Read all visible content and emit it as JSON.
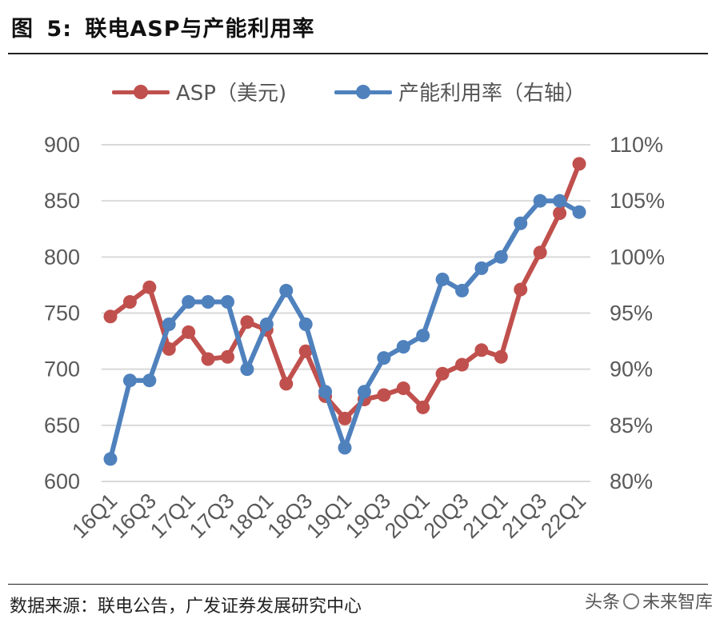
{
  "figure": {
    "prefix": "图",
    "number": "5:",
    "title": "联电ASP与产能利用率"
  },
  "source_note": "数据来源：联电公告，广发证券发展研究中心",
  "watermark": {
    "left": "头条",
    "right": "未来智库"
  },
  "colors": {
    "asp": "#C0504D",
    "utilization": "#4F81BD",
    "grid": "#D9D9D9",
    "axis_text": "#595959"
  },
  "chart_data": {
    "type": "line",
    "title": "联电ASP与产能利用率",
    "categories": [
      "16Q1",
      "16Q2",
      "16Q3",
      "16Q4",
      "17Q1",
      "17Q2",
      "17Q3",
      "17Q4",
      "18Q1",
      "18Q2",
      "18Q3",
      "18Q4",
      "19Q1",
      "19Q2",
      "19Q3",
      "19Q4",
      "20Q1",
      "20Q2",
      "20Q3",
      "20Q4",
      "21Q1",
      "21Q2",
      "21Q3",
      "21Q4",
      "22Q1"
    ],
    "tick_labels_shown": [
      "16Q1",
      "16Q3",
      "17Q1",
      "17Q3",
      "18Q1",
      "18Q3",
      "19Q1",
      "19Q3",
      "20Q1",
      "20Q3",
      "21Q1",
      "21Q3",
      "22Q1"
    ],
    "y_left": {
      "min": 600,
      "max": 900,
      "step": 50,
      "ticks": [
        "600",
        "650",
        "700",
        "750",
        "800",
        "850",
        "900"
      ]
    },
    "y_right": {
      "min": 80,
      "max": 110,
      "step": 5,
      "ticks": [
        "80%",
        "85%",
        "90%",
        "95%",
        "100%",
        "105%",
        "110%"
      ]
    },
    "grid": true,
    "legend_position": "top",
    "series": [
      {
        "name": "ASP（美元)",
        "axis": "left",
        "values": [
          747,
          760,
          773,
          718,
          733,
          709,
          711,
          742,
          735,
          687,
          716,
          676,
          656,
          673,
          677,
          683,
          666,
          696,
          704,
          717,
          711,
          771,
          804,
          839,
          883
        ]
      },
      {
        "name": "产能利用率（右轴）",
        "axis": "right",
        "values": [
          82,
          89,
          89,
          94,
          96,
          96,
          96,
          90,
          94,
          97,
          94,
          88,
          83,
          88,
          91,
          92,
          93,
          98,
          97,
          99,
          100,
          103,
          105,
          105,
          104
        ]
      }
    ]
  }
}
